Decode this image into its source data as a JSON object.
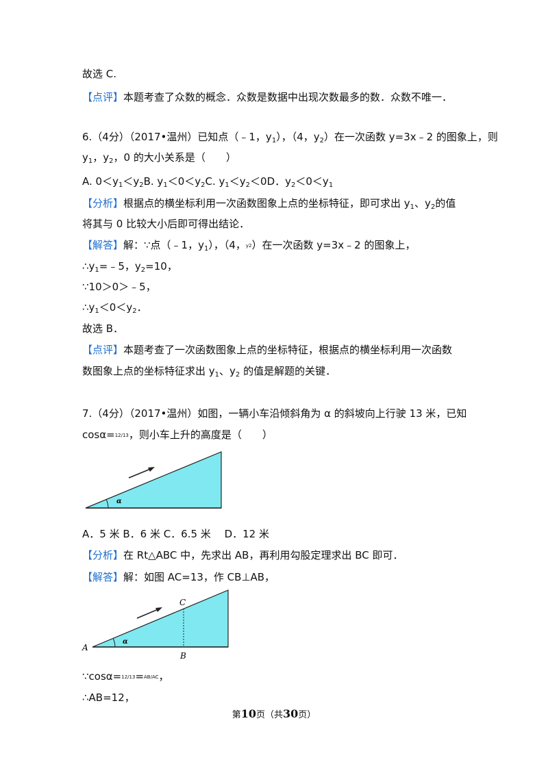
{
  "lines": [
    [
      "故选 C."
    ],
    [
      {
        "tag": "【点评】"
      },
      "本题考查了众数的概念．众数是数据中出现次数最多的数．众数不唯一．"
    ],
    [
      "6.（4分）（2017•温州）已知点（﹣1，y",
      {
        "sub": "1"
      },
      "），（4，y",
      {
        "sub": "2"
      },
      "）在一次函数 y=3x﹣2 的图象上，则"
    ],
    [
      "y",
      {
        "sub": "1"
      },
      "，y",
      {
        "sub": "2"
      },
      "，0 的大小关系是（　　）"
    ],
    [
      "A. 0＜y",
      {
        "sub": "1"
      },
      "＜y",
      {
        "sub": "2"
      },
      "B. y",
      {
        "sub": "1"
      },
      "＜0＜y",
      {
        "sub": "2"
      },
      "C. y",
      {
        "sub": "1"
      },
      "＜y",
      {
        "sub": "2"
      },
      "＜0D．y",
      {
        "sub": "2"
      },
      "＜0＜y",
      {
        "sub": "1"
      }
    ],
    [
      {
        "tag": "【分析】"
      },
      "根据点的横坐标利用一次函数图象上点的坐标特征，即可求出 y",
      {
        "sub": "1"
      },
      "、y",
      {
        "sub": "2"
      },
      "的值"
    ],
    [
      "将其与 0 比较大小后即可得出结论．"
    ],
    [
      {
        "tag": "【解答】"
      },
      "解：∵点（﹣1，y",
      {
        "sub": "1"
      },
      "），（4，",
      {
        "frac": "y2"
      },
      "）在一次函数 y=3x﹣2 的图象上，"
    ],
    [
      "∴y",
      {
        "sub": "1"
      },
      "=﹣5，y",
      {
        "sub": "2"
      },
      "=10，"
    ],
    [
      "∵10＞0＞﹣5，"
    ],
    [
      "∴y",
      {
        "sub": "1"
      },
      "＜0＜y",
      {
        "sub": "2"
      },
      "．"
    ],
    [
      "故选 B．"
    ],
    [
      {
        "tag": "【点评】"
      },
      "本题考查了一次函数图象上点的坐标特征，根据点的横坐标利用一次函数"
    ],
    [
      "数图象上点的坐标特征求出 y",
      {
        "sub": "1"
      },
      "、y",
      {
        "sub": "2"
      },
      " 的值是解题的关键．"
    ],
    [
      "7.（4分）（2017•温州）如图，一辆小车沿倾斜角为 α 的斜坡向上行驶 13 米，已知"
    ],
    [
      "cosα=",
      {
        "frac": "12/13"
      },
      "，则小车上升的高度是（　　）"
    ],
    [
      "A．5 米 B．6 米 C．6.5 米　 D．12 米"
    ],
    [
      {
        "tag": "【分析】"
      },
      "在 Rt△ABC 中，先求出 AB，再利用勾股定理求出 BC 即可．"
    ],
    [
      {
        "tag": "【解答】"
      },
      "解：如图 AC=13，作 CB⊥AB，"
    ],
    [
      "∵cosα=",
      {
        "frac": "12/13"
      },
      "=",
      {
        "frac": "AB/AC"
      },
      "，"
    ],
    [
      "∴AB=12，"
    ]
  ],
  "figure1": {
    "angle": "α"
  },
  "figure2": {
    "angle": "α",
    "A": "A",
    "B": "B",
    "C": "C"
  },
  "footer": [
    "第",
    {
      "b": "10"
    },
    "页（共",
    {
      "b": "30"
    },
    "页）"
  ]
}
